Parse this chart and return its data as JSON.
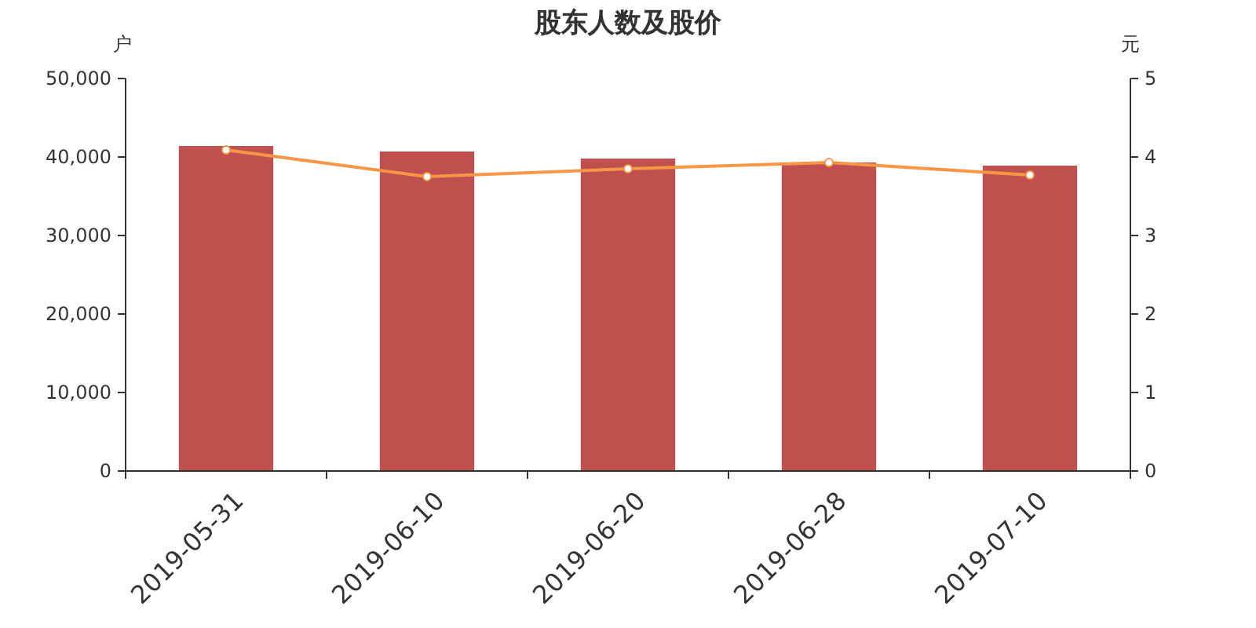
{
  "chart_data": {
    "type": "bar",
    "title": "股东人数及股价",
    "ylabel": "户",
    "y2label": "元",
    "categories": [
      "2019-05-31",
      "2019-06-10",
      "2019-06-20",
      "2019-06-28",
      "2019-07-10"
    ],
    "series": [
      {
        "color": "#c0504d",
        "values": [
          41400,
          40700,
          39800,
          39300,
          38900
        ]
      },
      {
        "type": "line",
        "axis": "y2",
        "color": "#f79646",
        "marker": "circle",
        "values": [
          4.09,
          3.75,
          3.85,
          3.93,
          3.77
        ]
      }
    ],
    "ylim": [
      0,
      50000
    ],
    "yticks": [
      {
        "value": 0,
        "label": "0"
      },
      {
        "value": 10000,
        "label": "10,000"
      },
      {
        "value": 20000,
        "label": "20,000"
      },
      {
        "value": 30000,
        "label": "30,000"
      },
      {
        "value": 40000,
        "label": "40,000"
      },
      {
        "value": 50000,
        "label": "50,000"
      }
    ],
    "y2lim": [
      0,
      5
    ],
    "y2ticks": [
      0,
      1,
      2,
      3,
      4,
      5
    ],
    "grid": false
  }
}
